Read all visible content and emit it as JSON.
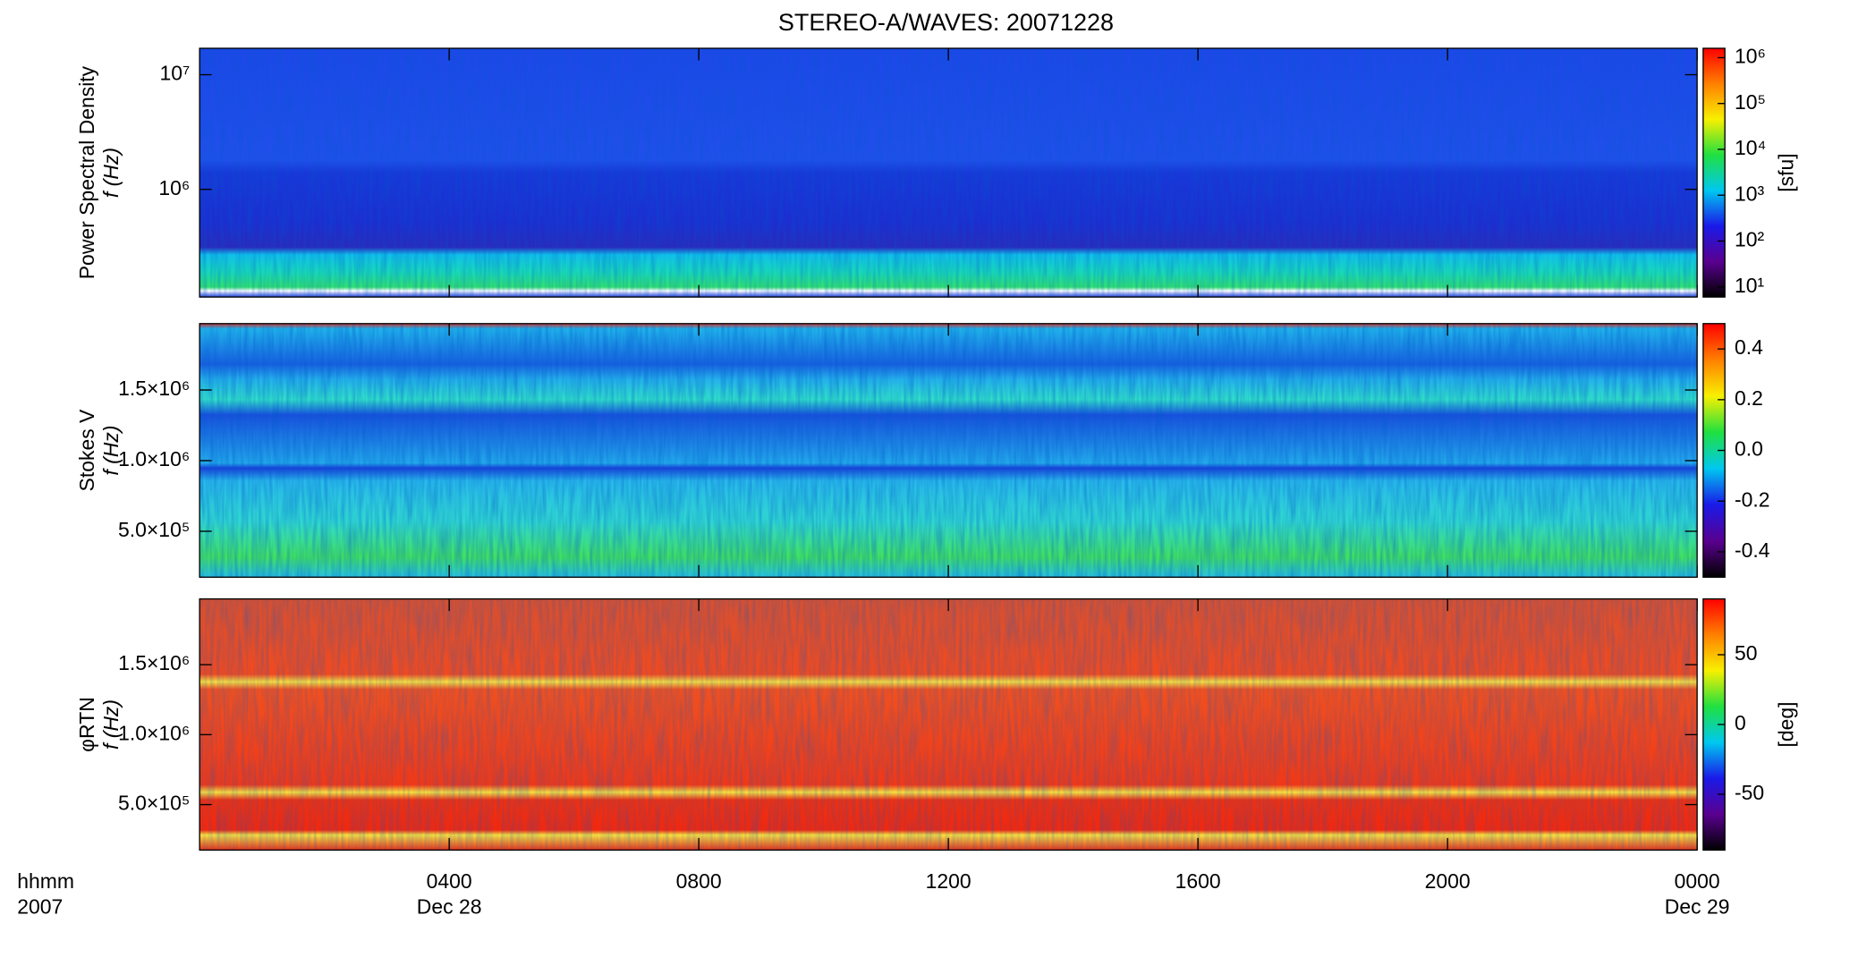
{
  "chart_data": [
    {
      "type": "spectrogram",
      "title": "STEREO-A/WAVES: 20071228",
      "ylabel": [
        "Power Spectral Density",
        "f (Hz)"
      ],
      "ylog": true,
      "ylim": [
        115000,
        17000000
      ],
      "yticks": [
        {
          "value": 1000000,
          "label": "10⁶"
        },
        {
          "value": 10000000,
          "label": "10⁷"
        }
      ],
      "clabel": "[sfu]",
      "clog": true,
      "clim": [
        6,
        1600000
      ],
      "cticks": [
        {
          "value": 10,
          "label": "10¹"
        },
        {
          "value": 100,
          "label": "10²"
        },
        {
          "value": 1000,
          "label": "10³"
        },
        {
          "value": 10000,
          "label": "10⁴"
        },
        {
          "value": 100000,
          "label": "10⁵"
        },
        {
          "value": 1000000,
          "label": "10⁶"
        }
      ],
      "colorscale": [
        "#000000",
        "#5a0090",
        "#1a1ae8",
        "#00c8f0",
        "#20e040",
        "#f8f000",
        "#ff8000",
        "#ff0000"
      ]
    },
    {
      "type": "spectrogram",
      "ylabel": [
        "Stokes V",
        "f (Hz)"
      ],
      "ylog": false,
      "ylim": [
        175000,
        1970000
      ],
      "yticks": [
        {
          "value": 500000,
          "label": "5.0×10⁵"
        },
        {
          "value": 1000000,
          "label": "1.0×10⁶"
        },
        {
          "value": 1500000,
          "label": "1.5×10⁶"
        }
      ],
      "clog": false,
      "clim": [
        -0.5,
        0.5
      ],
      "cticks": [
        -0.4,
        -0.2,
        {
          "value": 0,
          "label": "0.0"
        },
        0.2,
        0.4
      ],
      "colorscale": [
        "#000000",
        "#5a0090",
        "#1a1ae8",
        "#00c8f0",
        "#20e040",
        "#f8f000",
        "#ff8000",
        "#ff0000"
      ]
    },
    {
      "type": "spectrogram",
      "ylabel": [
        "φRTN",
        "f (Hz)"
      ],
      "ylog": false,
      "ylim": [
        175000,
        1970000
      ],
      "yticks": [
        {
          "value": 500000,
          "label": "5.0×10⁵"
        },
        {
          "value": 1000000,
          "label": "1.0×10⁶"
        },
        {
          "value": 1500000,
          "label": "1.5×10⁶"
        }
      ],
      "clabel": "[deg]",
      "clog": false,
      "clim": [
        -90,
        90
      ],
      "cticks": [
        -50,
        0,
        50
      ],
      "colorscale": [
        "#000000",
        "#5a0090",
        "#1a1ae8",
        "#00c8f0",
        "#20e040",
        "#f8f000",
        "#ff8000",
        "#ff0000"
      ],
      "xlabel": [
        "hhmm",
        "2007"
      ],
      "xlim": [
        0,
        24
      ],
      "xticks": [
        {
          "value": 4,
          "label": "0400"
        },
        {
          "value": 8,
          "label": "0800"
        },
        {
          "value": 12,
          "label": "1200"
        },
        {
          "value": 16,
          "label": "1600"
        },
        {
          "value": 20,
          "label": "2000"
        },
        {
          "value": 24,
          "label": "0000"
        }
      ],
      "date_labels": [
        {
          "value": 4,
          "label": "Dec 28"
        },
        {
          "value": 24,
          "label": "Dec 29"
        }
      ]
    }
  ]
}
